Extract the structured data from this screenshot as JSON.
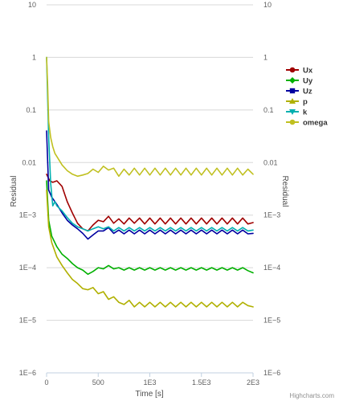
{
  "chart_data": {
    "type": "line",
    "title": "",
    "xlabel": "Time [s]",
    "ylabel": "Residual",
    "y2label": "Residual",
    "y_scale": "log",
    "xlim": [
      0,
      2000
    ],
    "ylim": [
      1e-06,
      10
    ],
    "x_tick_values": [
      0,
      500,
      1000,
      1500,
      2000
    ],
    "x_tick_labels": [
      "0",
      "500",
      "1E3",
      "1.5E3",
      "2E3"
    ],
    "y_tick_values": [
      10,
      1,
      0.1,
      0.01,
      0.001,
      0.0001,
      1e-05,
      1e-06
    ],
    "y_tick_labels": [
      "10",
      "1",
      "0.1",
      "0.01",
      "1E−3",
      "1E−4",
      "1E−5",
      "1E−6"
    ],
    "grid": "horizontal",
    "legend_position": "right",
    "credits": "Highcharts.com",
    "series": [
      {
        "name": "Ux",
        "color": "#a00000",
        "marker": "circle",
        "x": [
          0,
          30,
          60,
          100,
          150,
          200,
          250,
          300,
          350,
          400,
          450,
          500,
          550,
          600,
          650,
          700,
          750,
          800,
          850,
          900,
          950,
          1000,
          1050,
          1100,
          1150,
          1200,
          1250,
          1300,
          1350,
          1400,
          1450,
          1500,
          1550,
          1600,
          1650,
          1700,
          1750,
          1800,
          1850,
          1900,
          1950,
          2000
        ],
        "y": [
          0.006,
          0.0045,
          0.0042,
          0.0045,
          0.0035,
          0.0018,
          0.0011,
          0.0007,
          0.00055,
          0.0005,
          0.00065,
          0.0008,
          0.00075,
          0.00095,
          0.0007,
          0.00085,
          0.00068,
          0.00088,
          0.0007,
          0.00088,
          0.00068,
          0.00088,
          0.00068,
          0.00088,
          0.00068,
          0.00088,
          0.00068,
          0.00088,
          0.00068,
          0.00088,
          0.00068,
          0.00088,
          0.00068,
          0.00088,
          0.00068,
          0.00088,
          0.00068,
          0.00088,
          0.00068,
          0.00088,
          0.00068,
          0.00072
        ]
      },
      {
        "name": "Uy",
        "color": "#00b000",
        "marker": "diamond",
        "x": [
          0,
          20,
          50,
          100,
          150,
          200,
          250,
          300,
          350,
          400,
          450,
          500,
          550,
          600,
          650,
          700,
          750,
          800,
          850,
          900,
          950,
          1000,
          1050,
          1100,
          1150,
          1200,
          1250,
          1300,
          1350,
          1400,
          1450,
          1500,
          1550,
          1600,
          1650,
          1700,
          1750,
          1800,
          1850,
          1900,
          1950,
          2000
        ],
        "y": [
          0.0045,
          0.0008,
          0.0004,
          0.00025,
          0.00018,
          0.00015,
          0.00012,
          0.0001,
          9e-05,
          7.5e-05,
          8.5e-05,
          0.0001,
          9.5e-05,
          0.00011,
          9.5e-05,
          0.0001,
          9e-05,
          0.0001,
          9e-05,
          0.0001,
          9e-05,
          0.0001,
          9e-05,
          0.0001,
          9e-05,
          0.0001,
          9e-05,
          0.0001,
          9e-05,
          0.0001,
          9e-05,
          0.0001,
          9e-05,
          0.0001,
          9e-05,
          0.0001,
          9e-05,
          0.0001,
          9e-05,
          0.0001,
          8.8e-05,
          8e-05
        ]
      },
      {
        "name": "Uz",
        "color": "#0000a0",
        "marker": "square",
        "x": [
          0,
          20,
          50,
          100,
          150,
          200,
          250,
          300,
          350,
          400,
          450,
          500,
          550,
          600,
          650,
          700,
          750,
          800,
          850,
          900,
          950,
          1000,
          1050,
          1100,
          1150,
          1200,
          1250,
          1300,
          1350,
          1400,
          1450,
          1500,
          1550,
          1600,
          1650,
          1700,
          1750,
          1800,
          1850,
          1900,
          1950,
          2000
        ],
        "y": [
          0.04,
          0.003,
          0.0022,
          0.0016,
          0.0011,
          0.0008,
          0.00065,
          0.00055,
          0.00045,
          0.00035,
          0.00042,
          0.0005,
          0.0005,
          0.00058,
          0.00045,
          0.00052,
          0.00044,
          0.00052,
          0.00044,
          0.00052,
          0.00044,
          0.00052,
          0.00044,
          0.00052,
          0.00044,
          0.00052,
          0.00044,
          0.00052,
          0.00044,
          0.00052,
          0.00044,
          0.00052,
          0.00044,
          0.00052,
          0.00044,
          0.00052,
          0.00044,
          0.00052,
          0.00044,
          0.00052,
          0.00044,
          0.00045
        ]
      },
      {
        "name": "p",
        "color": "#b0b000",
        "marker": "triangle",
        "x": [
          0,
          20,
          50,
          100,
          150,
          200,
          250,
          300,
          350,
          400,
          450,
          500,
          550,
          600,
          650,
          700,
          750,
          800,
          850,
          900,
          950,
          1000,
          1050,
          1100,
          1150,
          1200,
          1250,
          1300,
          1350,
          1400,
          1450,
          1500,
          1550,
          1600,
          1650,
          1700,
          1750,
          1800,
          1850,
          1900,
          1950,
          2000
        ],
        "y": [
          0.003,
          0.0006,
          0.0003,
          0.00016,
          0.00011,
          8e-05,
          6e-05,
          5e-05,
          4e-05,
          3.8e-05,
          4.2e-05,
          3.2e-05,
          3.5e-05,
          2.5e-05,
          2.8e-05,
          2.2e-05,
          2e-05,
          2.4e-05,
          1.8e-05,
          2.2e-05,
          1.8e-05,
          2.2e-05,
          1.8e-05,
          2.2e-05,
          1.8e-05,
          2.2e-05,
          1.8e-05,
          2.2e-05,
          1.8e-05,
          2.2e-05,
          1.8e-05,
          2.2e-05,
          1.8e-05,
          2.2e-05,
          1.8e-05,
          2.2e-05,
          1.8e-05,
          2.2e-05,
          1.8e-05,
          2.2e-05,
          1.9e-05,
          1.8e-05
        ]
      },
      {
        "name": "k",
        "color": "#00b0b0",
        "marker": "triangle-down",
        "x": [
          0,
          20,
          40,
          60,
          80,
          100,
          150,
          200,
          250,
          300,
          350,
          400,
          450,
          500,
          550,
          600,
          650,
          700,
          750,
          800,
          850,
          900,
          950,
          1000,
          1050,
          1100,
          1150,
          1200,
          1250,
          1300,
          1350,
          1400,
          1450,
          1500,
          1550,
          1600,
          1650,
          1700,
          1750,
          1800,
          1850,
          1900,
          1950,
          2000
        ],
        "y": [
          1,
          0.03,
          0.004,
          0.0015,
          0.0018,
          0.0015,
          0.0012,
          0.0009,
          0.0007,
          0.0006,
          0.00055,
          0.0005,
          0.00055,
          0.0006,
          0.00055,
          0.0006,
          0.0005,
          0.00058,
          0.0005,
          0.00058,
          0.0005,
          0.00058,
          0.0005,
          0.00058,
          0.0005,
          0.00058,
          0.0005,
          0.00058,
          0.0005,
          0.00058,
          0.0005,
          0.00058,
          0.0005,
          0.00058,
          0.0005,
          0.00058,
          0.0005,
          0.00058,
          0.0005,
          0.00058,
          0.0005,
          0.00058,
          0.0005,
          0.00052
        ]
      },
      {
        "name": "omega",
        "color": "#c0c020",
        "marker": "circle",
        "x": [
          0,
          10,
          20,
          40,
          60,
          80,
          100,
          150,
          200,
          250,
          300,
          350,
          400,
          450,
          500,
          550,
          600,
          650,
          700,
          750,
          800,
          850,
          900,
          950,
          1000,
          1050,
          1100,
          1150,
          1200,
          1250,
          1300,
          1350,
          1400,
          1450,
          1500,
          1550,
          1600,
          1650,
          1700,
          1750,
          1800,
          1850,
          1900,
          1950,
          2000
        ],
        "y": [
          1,
          0.3,
          0.06,
          0.03,
          0.02,
          0.015,
          0.013,
          0.009,
          0.007,
          0.006,
          0.0055,
          0.0058,
          0.0062,
          0.0075,
          0.0065,
          0.0085,
          0.0072,
          0.0078,
          0.0055,
          0.0075,
          0.0058,
          0.0078,
          0.0058,
          0.0078,
          0.0058,
          0.0078,
          0.0058,
          0.0078,
          0.0058,
          0.0078,
          0.0058,
          0.0078,
          0.0058,
          0.0078,
          0.0058,
          0.0078,
          0.0058,
          0.0078,
          0.0058,
          0.0078,
          0.0058,
          0.0078,
          0.0058,
          0.0075,
          0.006
        ]
      }
    ]
  }
}
